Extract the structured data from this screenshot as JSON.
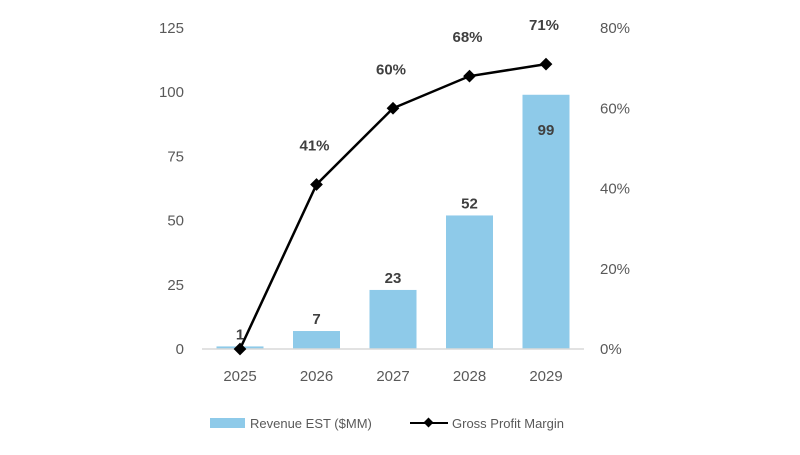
{
  "chart_data": {
    "type": "bar+line",
    "categories": [
      "2025",
      "2026",
      "2027",
      "2028",
      "2029"
    ],
    "series": [
      {
        "name": "Revenue EST ($MM)",
        "type": "bar",
        "axis": "left",
        "values": [
          1,
          7,
          23,
          52,
          99
        ],
        "labels": [
          "1",
          "7",
          "23",
          "52",
          "99"
        ],
        "color": "#8ecae9"
      },
      {
        "name": "Gross Profit Margin",
        "type": "line",
        "axis": "right",
        "values": [
          0,
          41,
          60,
          68,
          71
        ],
        "labels": [
          "",
          "41%",
          "60%",
          "68%",
          "71%"
        ],
        "color": "#000000",
        "marker": "diamond"
      }
    ],
    "left_axis": {
      "ylim": [
        0,
        125
      ],
      "ticks": [
        "0",
        "25",
        "50",
        "75",
        "100",
        "125"
      ],
      "tick_values": [
        0,
        25,
        50,
        75,
        100,
        125
      ]
    },
    "right_axis": {
      "ylim": [
        0,
        80
      ],
      "ticks": [
        "0%",
        "20%",
        "40%",
        "60%",
        "80%"
      ],
      "tick_values": [
        0,
        20,
        40,
        60,
        80
      ]
    },
    "title": "",
    "grid": false,
    "legend_position": "bottom"
  }
}
